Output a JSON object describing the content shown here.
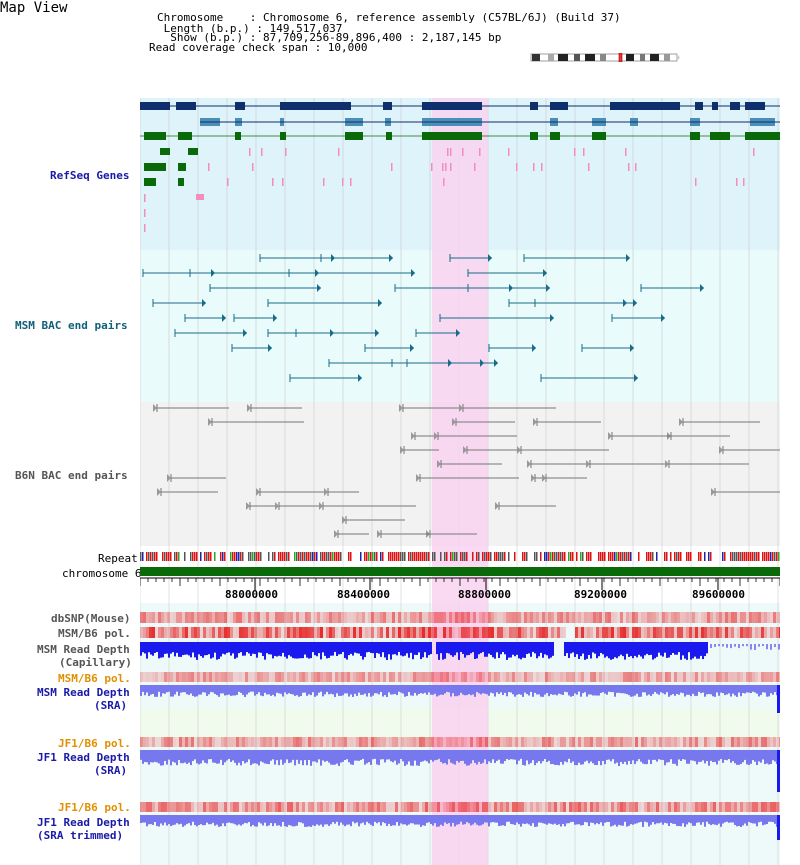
{
  "header": {
    "title": "Map View",
    "chromosome_line": "Chromosome    : Chromosome 6, reference assembly (C57BL/6J) (Build 37)",
    "length_line": " Length (b.p.) : 149,517,037",
    "show_line": "  Show (b.p.) : 87,709,256-89,896,400 : 2,187,145 bp",
    "coverage_line": "Read coverage check span : 10,000"
  },
  "tracks": {
    "refseq": "RefSeq Genes",
    "msm_bac": "MSM BAC end pairs",
    "b6n_bac": "B6N BAC end pairs",
    "repeat": "Repeat",
    "chromosome": "chromosome 6",
    "dbsnp": "dbSNP(Mouse)",
    "msm_b6_pol_1": "MSM/B6 pol.",
    "msm_depth_cap_1": "MSM Read Depth",
    "msm_depth_cap_2": "(Capillary)",
    "msm_b6_pol_2": "MSM/B6 pol.",
    "msm_depth_sra_1": "MSM Read Depth",
    "msm_depth_sra_2": "(SRA)",
    "jf1_b6_pol_1": "JF1/B6 pol.",
    "jf1_depth_sra_1": "JF1 Read Depth",
    "jf1_depth_sra_2": "(SRA)",
    "jf1_b6_pol_2": "JF1/B6 pol.",
    "jf1_depth_trim_1": "JF1 Read Depth",
    "jf1_depth_trim_2": "(SRA trimmed)"
  },
  "axis": {
    "ticks": [
      "88000000",
      "88400000",
      "88800000",
      "89200000",
      "89600000"
    ]
  },
  "colors": {
    "refseq_bg": "#dff3fb",
    "msm_bg": "#e9fbfb",
    "b6n_bg": "#f2f2f2",
    "highlight": "#f9d2f0",
    "gene_dark": "#0e2e6c",
    "gene_mid": "#4a8fb8",
    "gene_green": "#0a6a0a",
    "pink": "#f48cc0",
    "teal_line": "#1a6b8a",
    "gray_line": "#777777",
    "depth_blue": "#1a1aee",
    "depth_light": "#7878ee"
  }
}
